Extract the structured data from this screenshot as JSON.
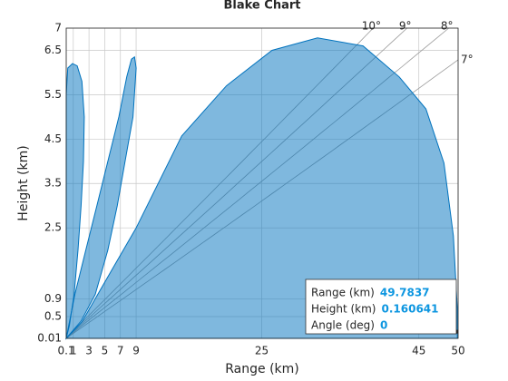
{
  "chart_data": {
    "type": "blake",
    "title": "Blake Chart",
    "xlabel": "Range (km)",
    "ylabel": "Height (km)",
    "xlim": [
      0.1,
      50
    ],
    "xticks": [
      0.1,
      1,
      3,
      5,
      7,
      9,
      25,
      45,
      50
    ],
    "ylim": [
      0.01,
      7
    ],
    "yticks": [
      0.01,
      0.5,
      0.9,
      2.5,
      3.5,
      4.5,
      5.5,
      6.5,
      7
    ],
    "grid": true,
    "color": "#0072bd",
    "angle_ticks": [
      {
        "value": 10,
        "label": "10°"
      },
      {
        "value": 9,
        "label": "9°"
      },
      {
        "value": 8,
        "label": "8°"
      },
      {
        "value": 7,
        "label": "7°"
      }
    ],
    "series": [
      {
        "x": [
          0.1,
          0.1,
          0.3,
          0.9,
          1.5,
          2.1,
          2.4,
          2.3,
          2.0,
          1.6,
          1.1,
          0.5,
          0.1
        ],
        "y": [
          0.01,
          5.5,
          6.1,
          6.2,
          6.15,
          5.8,
          5.0,
          4.0,
          3.0,
          2.0,
          1.0,
          0.3,
          0.01
        ]
      },
      {
        "x": [
          0.1,
          1.2,
          2.6,
          4.0,
          5.4,
          6.8,
          7.8,
          8.4,
          8.8,
          9.0,
          8.6,
          7.6,
          6.6,
          5.4,
          3.8,
          2.0,
          0.1
        ],
        "y": [
          0.01,
          1,
          2,
          3,
          4,
          5,
          5.9,
          6.3,
          6.35,
          6.1,
          5,
          4,
          3,
          2,
          1,
          0.4,
          0.01
        ]
      },
      {
        "x": [
          0.1,
          2.1,
          4.4,
          9,
          14.8,
          20.5,
          26.3,
          32.1,
          37.9,
          42.5,
          45.9,
          48.2,
          49.4,
          49.9,
          49.9
        ],
        "y": [
          0.01,
          0.38,
          1.09,
          2.5,
          4.57,
          5.7,
          6.5,
          6.78,
          6.6,
          5.9,
          5.18,
          3.96,
          2.32,
          0.68,
          0.01
        ]
      }
    ],
    "datatip": {
      "rows": [
        {
          "label": "Range (km)",
          "value": 49.7837
        },
        {
          "label": "Height (km)",
          "value": 0.160641
        },
        {
          "label": "Angle (deg)",
          "value": 0
        }
      ]
    }
  }
}
